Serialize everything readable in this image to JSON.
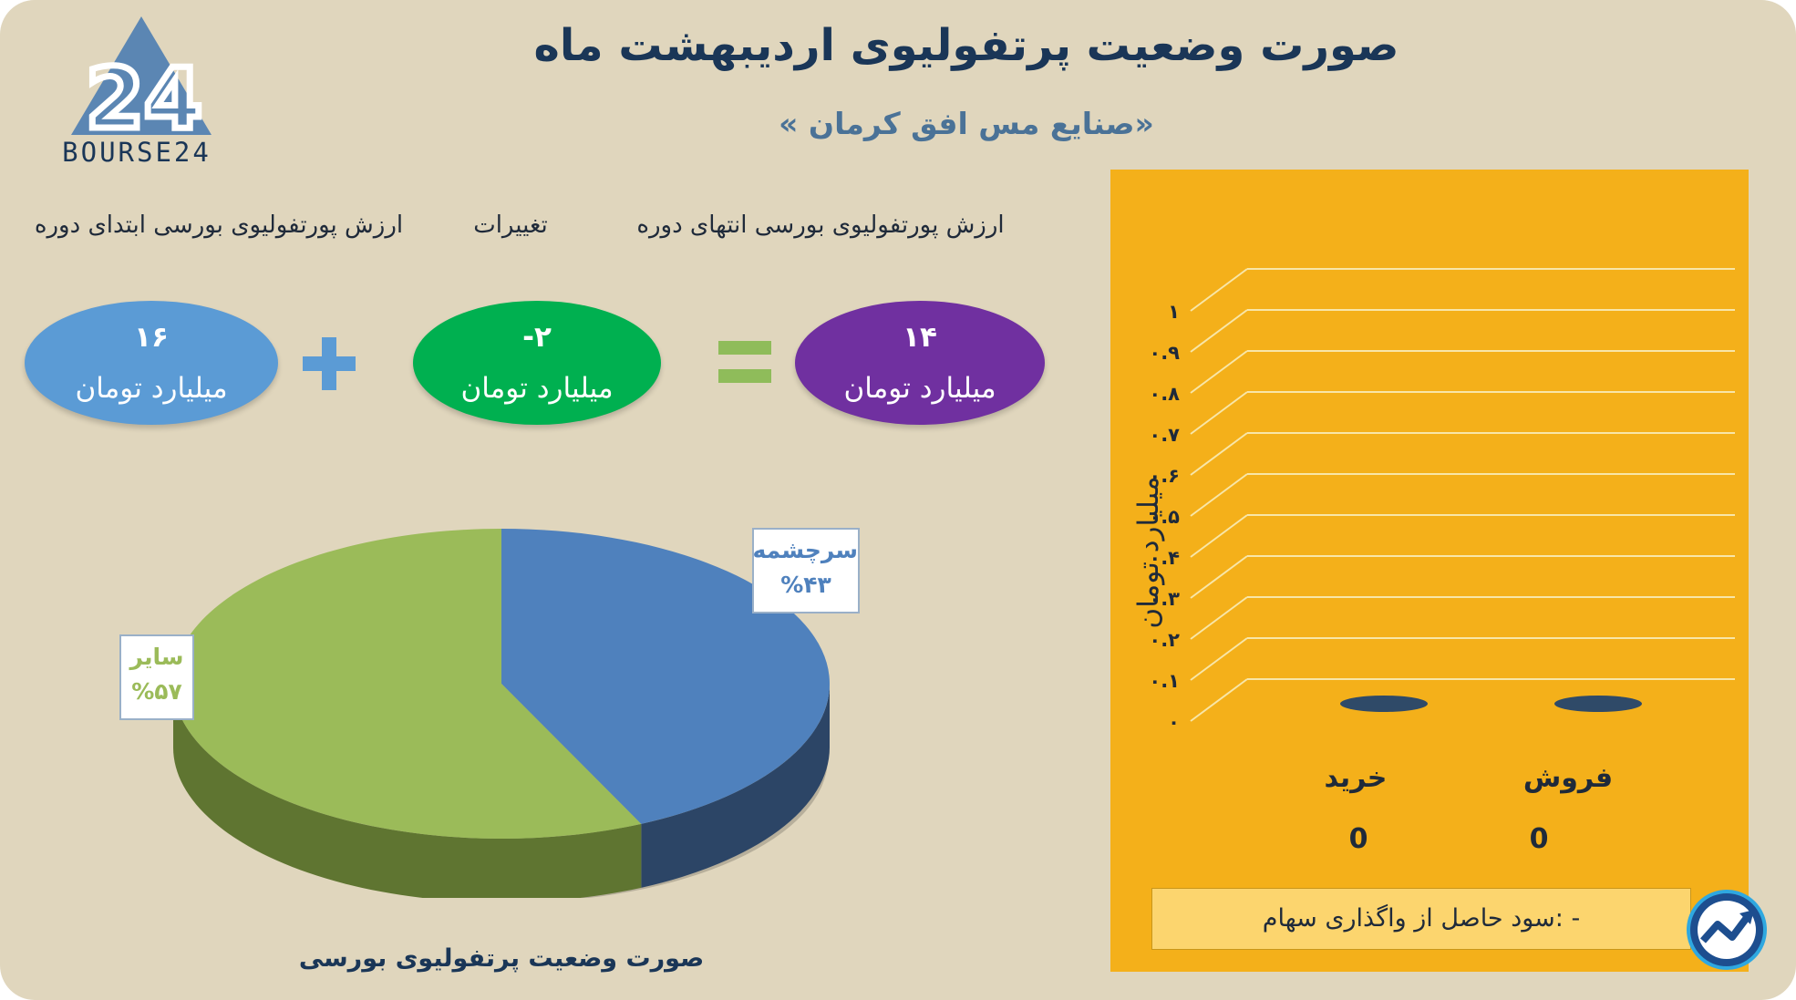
{
  "header": {
    "title": "صورت وضعیت پرتفولیوی اردیبهشت ماه",
    "subtitle": "«صنایع مس افق کرمان »",
    "logo_text": "BOURSE24"
  },
  "equation": {
    "start": {
      "label": "ارزش پورتفولیوی بورسی ابتدای دوره",
      "value": "۱۶",
      "unit": "میلیارد تومان",
      "color": "#5b9bd5"
    },
    "change": {
      "label": "تغییرات",
      "value": "-۲",
      "unit": "میلیارد تومان",
      "color": "#00b050"
    },
    "end": {
      "label": "ارزش پورتفولیوی بورسی انتهای دوره",
      "value": "۱۴",
      "unit": "میلیارد تومان",
      "color": "#7030a0"
    },
    "plus_color": "#5b9bd5",
    "equals_color": "#8fbc5a"
  },
  "chart_data": [
    {
      "type": "pie",
      "title": "",
      "caption": "صورت وضعیت پرتفولیوی بورسی",
      "slices": [
        {
          "name": "سرچشمه",
          "value": 43,
          "label": "%۴۳",
          "color": "#4f81bd",
          "side_color": "#2c4566"
        },
        {
          "name": "سایر",
          "value": 57,
          "label": "%۵۷",
          "color": "#9bbb59",
          "side_color": "#5f7531"
        }
      ]
    },
    {
      "type": "bar",
      "ylabel": "میلیارد تومان",
      "ylim": [
        0,
        1
      ],
      "ticks": [
        {
          "value": 0,
          "label": "۰"
        },
        {
          "value": 0.1,
          "label": "۰.۱"
        },
        {
          "value": 0.2,
          "label": "۰.۲"
        },
        {
          "value": 0.3,
          "label": "۰.۳"
        },
        {
          "value": 0.4,
          "label": "۰.۴"
        },
        {
          "value": 0.5,
          "label": "۰.۵"
        },
        {
          "value": 0.6,
          "label": "۰.۶"
        },
        {
          "value": 0.7,
          "label": "۰.۷"
        },
        {
          "value": 0.8,
          "label": "۰.۸"
        },
        {
          "value": 0.9,
          "label": "۰.۹"
        },
        {
          "value": 1,
          "label": "۱"
        }
      ],
      "categories": [
        "خرید",
        "فروش"
      ],
      "values": [
        0,
        0
      ],
      "value_labels": [
        "0",
        "0"
      ],
      "bar_color": "#2f4a68",
      "panel_color": "#f4b01a"
    }
  ],
  "footer": {
    "profit_text": "- :سود حاصل از واگذاری سهام"
  }
}
